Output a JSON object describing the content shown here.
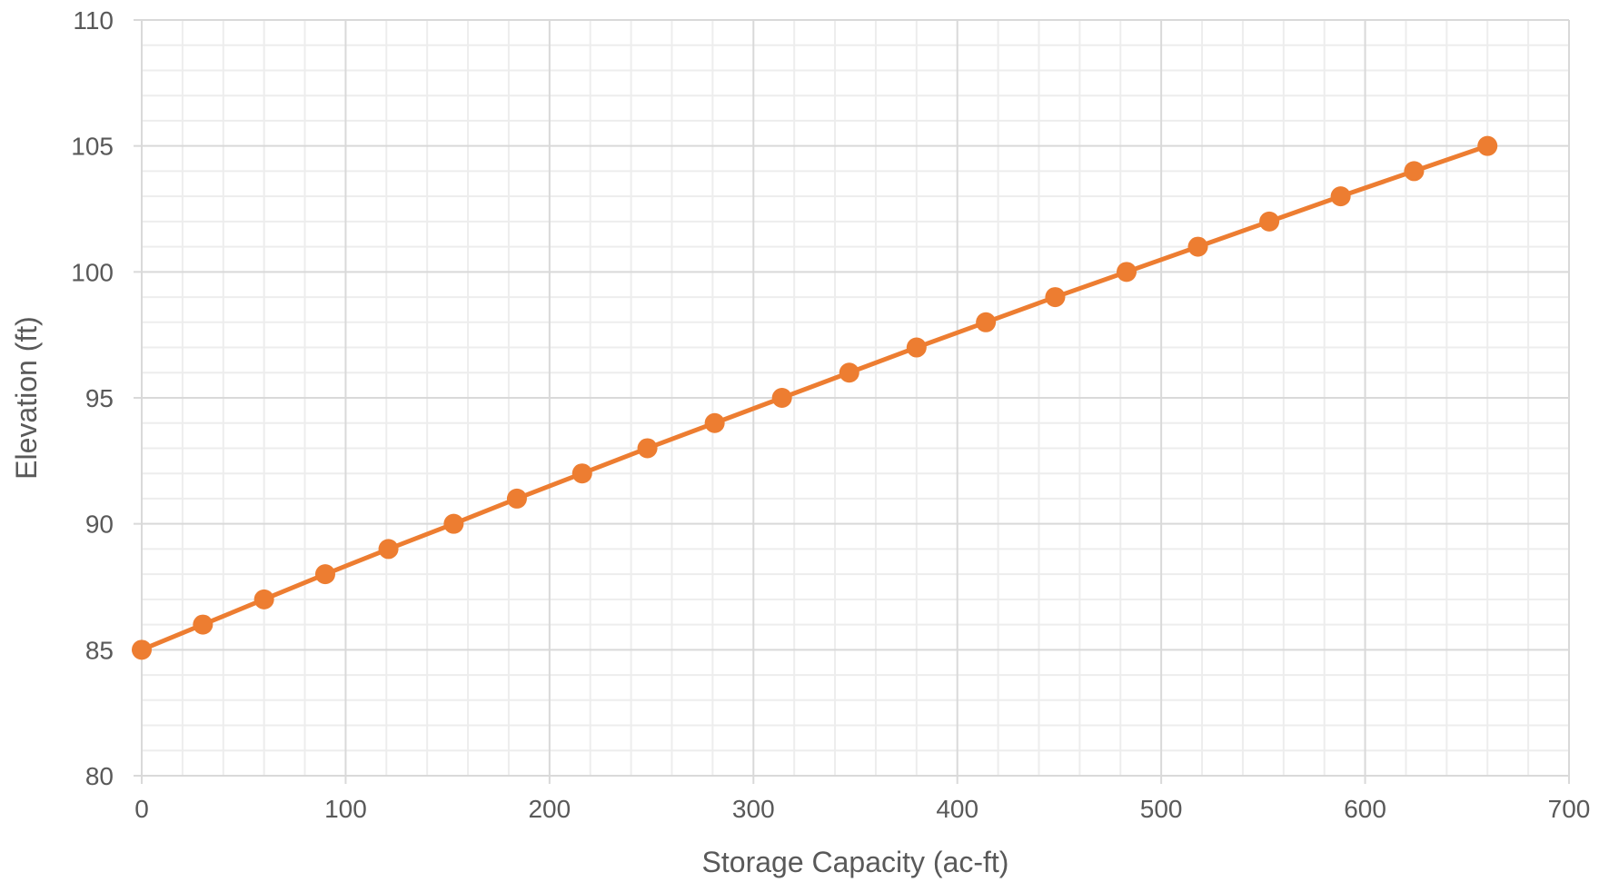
{
  "chart_data": {
    "type": "line",
    "title": "",
    "xlabel": "Storage Capacity (ac-ft)",
    "ylabel": "Elevation (ft)",
    "xlim": [
      0,
      700
    ],
    "ylim": [
      80,
      110
    ],
    "x_major_step": 100,
    "x_minor_step": 20,
    "y_major_step": 5,
    "y_minor_step": 1,
    "x_ticks": [
      "0",
      "100",
      "200",
      "300",
      "400",
      "500",
      "600",
      "700"
    ],
    "y_ticks": [
      "80",
      "85",
      "90",
      "95",
      "100",
      "105",
      "110"
    ],
    "grid": true,
    "legend": "none",
    "series": [
      {
        "color": "#ED7D31",
        "marker": "circle",
        "x": [
          0,
          30,
          60,
          90,
          121,
          153,
          184,
          216,
          248,
          281,
          314,
          347,
          380,
          414,
          448,
          483,
          518,
          553,
          588,
          624,
          660
        ],
        "y": [
          85,
          86,
          87,
          88,
          89,
          90,
          91,
          92,
          93,
          94,
          95,
          96,
          97,
          98,
          99,
          100,
          101,
          102,
          103,
          104,
          105
        ]
      }
    ],
    "colors": {
      "major_grid": "#D9D9D9",
      "minor_grid": "#EDEDED",
      "axis_text": "#595959"
    }
  }
}
